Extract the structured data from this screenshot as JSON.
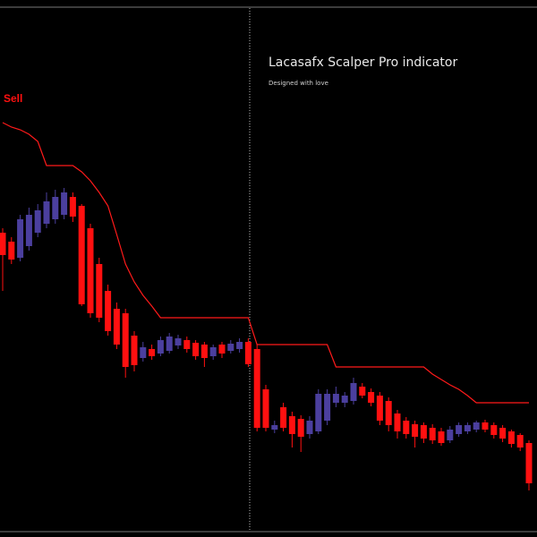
{
  "chart_data": {
    "type": "candlestick",
    "title": "Lacasafx Scalper Pro indicator",
    "subtitle": "Designed with love",
    "annotation": "Sell",
    "up_color": "#4b3f9e",
    "down_color": "#ff1010",
    "ylim": [
      0,
      600
    ],
    "open": [
      340,
      330,
      312,
      325,
      340,
      350,
      355,
      360,
      380,
      370,
      345,
      305,
      275,
      255,
      250,
      225,
      200,
      210,
      205,
      208,
      214,
      220,
      217,
      215,
      202,
      215,
      208,
      210,
      218,
      210,
      165,
      120,
      145,
      135,
      132,
      115,
      118,
      130,
      150,
      150,
      152,
      168,
      162,
      158,
      152,
      138,
      130,
      126,
      125,
      122,
      118,
      108,
      115,
      118,
      120,
      128,
      125,
      122,
      118,
      114,
      105
    ],
    "high": [
      345,
      335,
      360,
      368,
      372,
      385,
      388,
      390,
      385,
      372,
      350,
      312,
      282,
      262,
      255,
      230,
      218,
      215,
      224,
      228,
      226,
      224,
      220,
      218,
      215,
      218,
      220,
      222,
      222,
      215,
      170,
      130,
      150,
      140,
      136,
      135,
      165,
      165,
      168,
      162,
      178,
      172,
      166,
      162,
      156,
      142,
      134,
      130,
      128,
      126,
      122,
      124,
      128,
      128,
      130,
      131,
      128,
      125,
      120,
      116,
      108
    ],
    "low": [
      275,
      305,
      308,
      320,
      335,
      345,
      350,
      355,
      352,
      258,
      245,
      240,
      225,
      210,
      178,
      185,
      196,
      198,
      202,
      205,
      210,
      206,
      198,
      190,
      198,
      200,
      205,
      206,
      190,
      118,
      118,
      116,
      118,
      100,
      95,
      110,
      115,
      125,
      145,
      145,
      148,
      155,
      146,
      125,
      118,
      110,
      110,
      100,
      105,
      104,
      102,
      105,
      112,
      115,
      117,
      117,
      110,
      106,
      100,
      96,
      52
    ],
    "close": [
      315,
      310,
      355,
      360,
      365,
      375,
      380,
      385,
      358,
      260,
      250,
      245,
      230,
      215,
      190,
      192,
      212,
      202,
      220,
      224,
      222,
      210,
      202,
      200,
      212,
      205,
      216,
      218,
      193,
      122,
      122,
      125,
      122,
      115,
      112,
      130,
      160,
      160,
      160,
      158,
      172,
      158,
      150,
      130,
      125,
      118,
      115,
      112,
      110,
      108,
      105,
      120,
      125,
      125,
      128,
      120,
      114,
      110,
      104,
      100,
      60
    ],
    "line": {
      "color": "#ff1a1a",
      "values": [
        463,
        458,
        455,
        450,
        442,
        415,
        415,
        415,
        415,
        408,
        398,
        385,
        370,
        338,
        305,
        285,
        270,
        258,
        245,
        245,
        245,
        245,
        245,
        245,
        245,
        245,
        245,
        245,
        245,
        215,
        215,
        215,
        215,
        215,
        215,
        215,
        215,
        215,
        190,
        190,
        190,
        190,
        190,
        190,
        190,
        190,
        190,
        190,
        190,
        182,
        176,
        170,
        165,
        158,
        150,
        150,
        150,
        150,
        150,
        150,
        150
      ]
    }
  }
}
